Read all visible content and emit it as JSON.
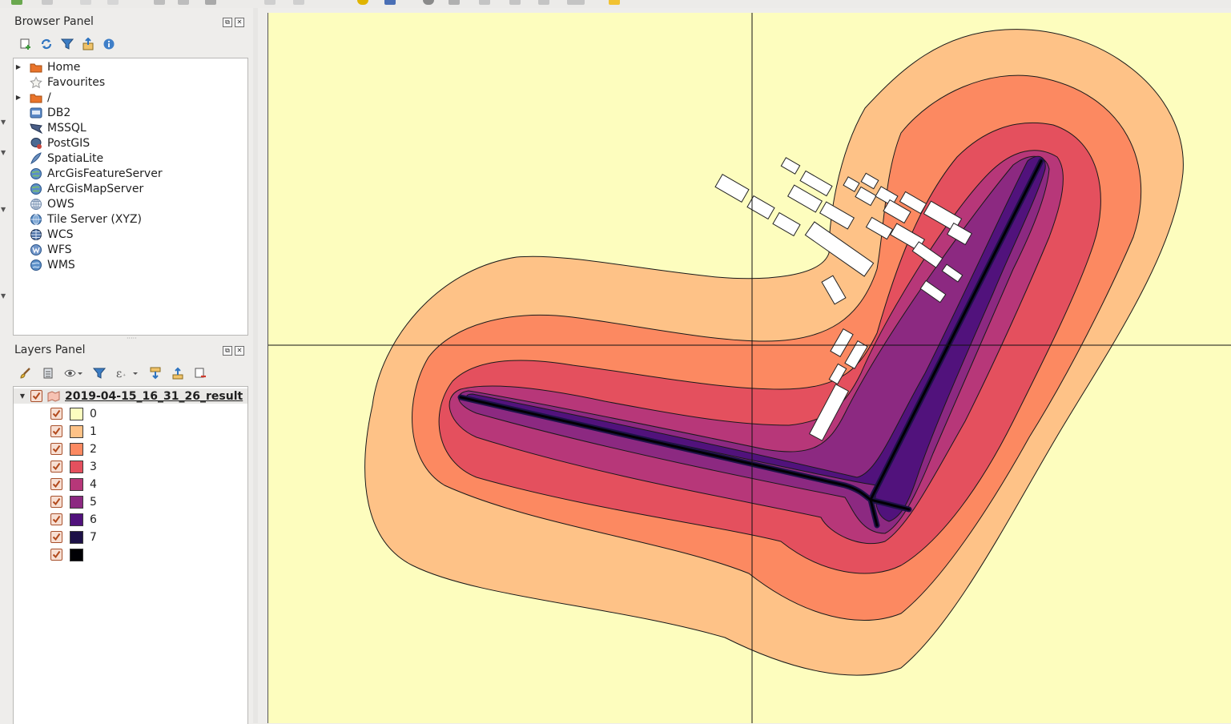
{
  "browser_panel": {
    "title": "Browser Panel",
    "items": [
      {
        "label": "Home",
        "icon": "folder-icon",
        "expandable": true
      },
      {
        "label": "Favourites",
        "icon": "star-icon",
        "expandable": false
      },
      {
        "label": "/",
        "icon": "folder-icon",
        "expandable": true
      },
      {
        "label": "DB2",
        "icon": "db2-icon",
        "expandable": false
      },
      {
        "label": "MSSQL",
        "icon": "mssql-icon",
        "expandable": false
      },
      {
        "label": "PostGIS",
        "icon": "postgis-icon",
        "expandable": false
      },
      {
        "label": "SpatiaLite",
        "icon": "spatialite-icon",
        "expandable": false
      },
      {
        "label": "ArcGisFeatureServer",
        "icon": "arcgis-icon",
        "expandable": false
      },
      {
        "label": "ArcGisMapServer",
        "icon": "arcgis-icon",
        "expandable": false
      },
      {
        "label": "OWS",
        "icon": "globe-icon",
        "expandable": false
      },
      {
        "label": "Tile Server (XYZ)",
        "icon": "globe-icon",
        "expandable": false
      },
      {
        "label": "WCS",
        "icon": "wcs-icon",
        "expandable": false
      },
      {
        "label": "WFS",
        "icon": "wfs-icon",
        "expandable": false
      },
      {
        "label": "WMS",
        "icon": "wms-icon",
        "expandable": false
      }
    ]
  },
  "layers_panel": {
    "title": "Layers Panel",
    "layer_name": "2019-04-15_16_31_26_result",
    "classes": [
      {
        "label": "0",
        "color": "#fcfdbf"
      },
      {
        "label": "1",
        "color": "#fec287"
      },
      {
        "label": "2",
        "color": "#fc8961"
      },
      {
        "label": "3",
        "color": "#e4505e"
      },
      {
        "label": "4",
        "color": "#b73779"
      },
      {
        "label": "5",
        "color": "#8c2981"
      },
      {
        "label": "6",
        "color": "#51127c"
      },
      {
        "label": "7",
        "color": "#1d1147"
      },
      {
        "label": "",
        "color": "#000004"
      }
    ]
  },
  "map": {
    "background_color": "#fdfdbe",
    "zone_colors": [
      "#fec287",
      "#fc8961",
      "#e4505e",
      "#b73779",
      "#8c2981",
      "#51127c",
      "#1d1147",
      "#000004"
    ]
  }
}
